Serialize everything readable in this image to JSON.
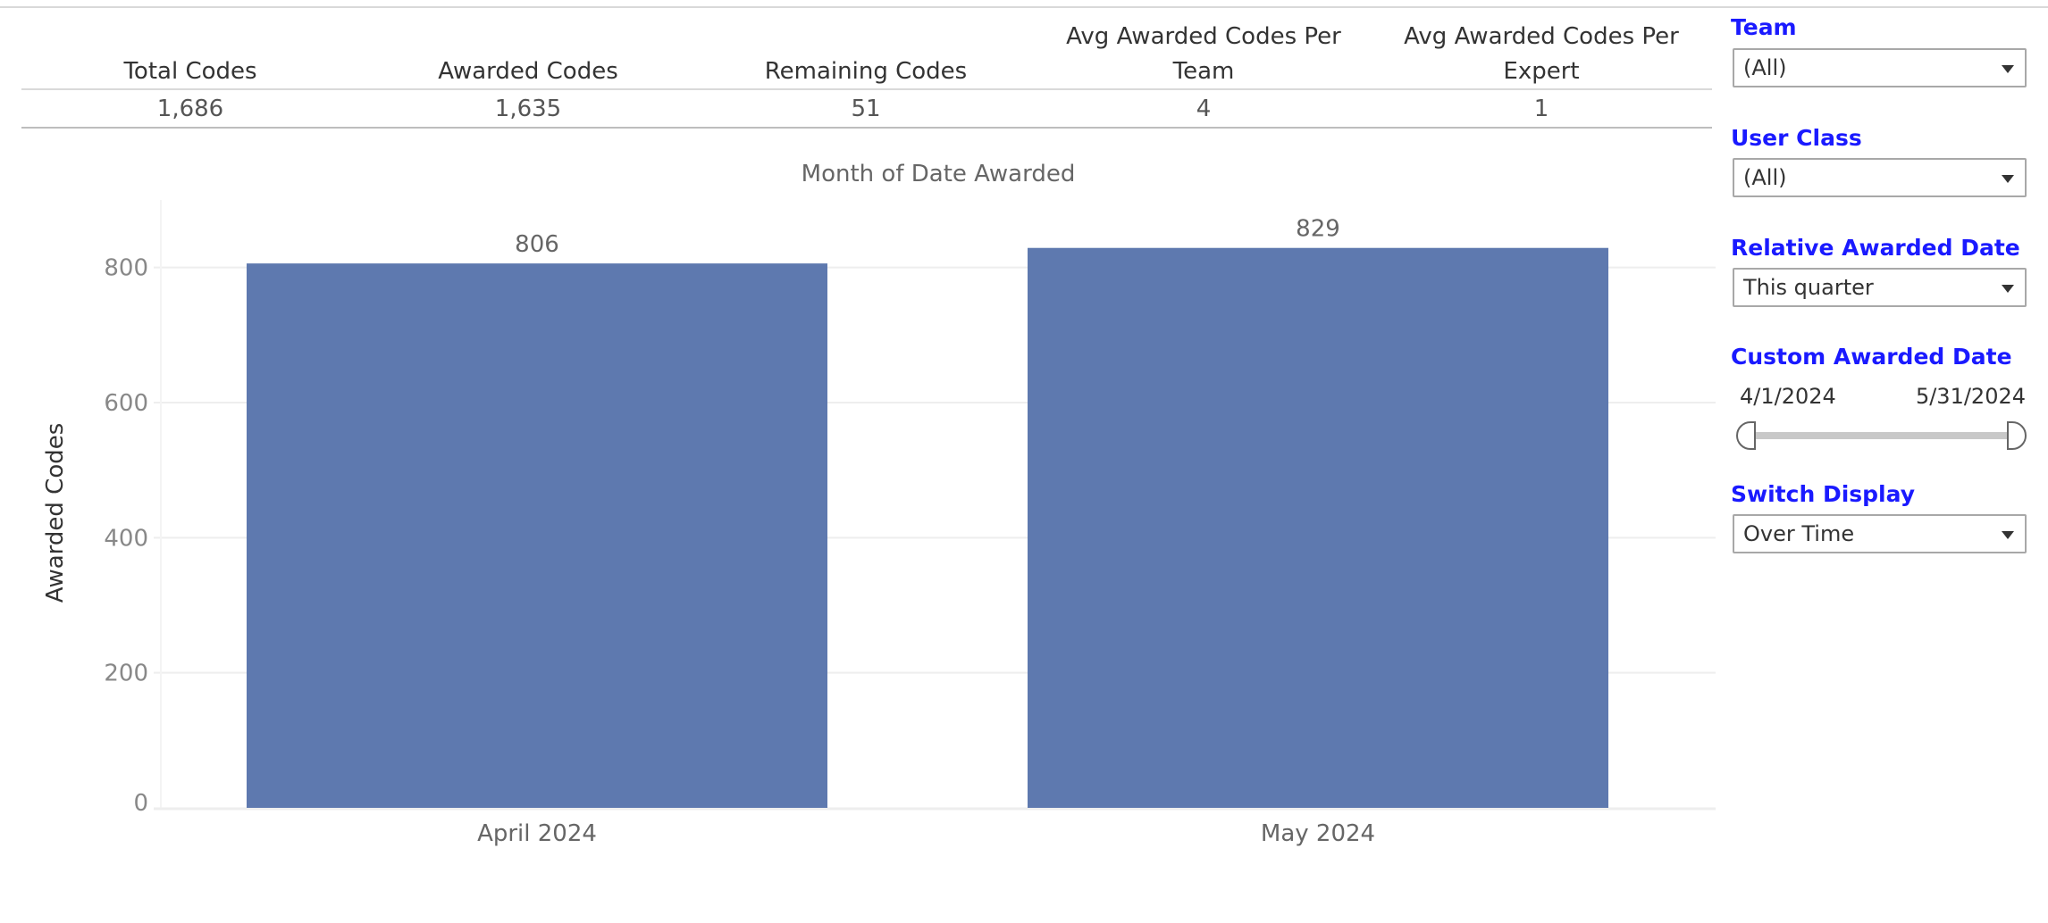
{
  "kpis": [
    {
      "header_line1": "",
      "header_line2": "Total Codes",
      "value": "1,686"
    },
    {
      "header_line1": "",
      "header_line2": "Awarded Codes",
      "value": "1,635"
    },
    {
      "header_line1": "",
      "header_line2": "Remaining Codes",
      "value": "51"
    },
    {
      "header_line1": "Avg Awarded Codes Per",
      "header_line2": "Team",
      "value": "4"
    },
    {
      "header_line1": "Avg Awarded Codes Per",
      "header_line2": "Expert",
      "value": "1"
    }
  ],
  "filters": {
    "team": {
      "title": "Team",
      "value": "(All)"
    },
    "user_class": {
      "title": "User Class",
      "value": "(All)"
    },
    "relative_date": {
      "title": "Relative Awarded Date",
      "value": "This quarter"
    },
    "custom_date": {
      "title": "Custom Awarded Date",
      "start": "4/1/2024",
      "end": "5/31/2024",
      "fill_fraction": 1.0
    },
    "switch_display": {
      "title": "Switch Display",
      "value": "Over Time"
    }
  },
  "colors": {
    "bar": "#5e79af",
    "filter_title": "#1a1aff",
    "grid": "#eeeeee"
  },
  "chart_data": {
    "type": "bar",
    "title": "Month of Date Awarded",
    "ylabel": "Awarded Codes",
    "xlabel": "",
    "categories": [
      "April 2024",
      "May 2024"
    ],
    "values": [
      806,
      829
    ],
    "data_labels": [
      "806",
      "829"
    ],
    "ylim": [
      0,
      900
    ],
    "yticks": [
      0,
      200,
      400,
      600,
      800
    ],
    "grid": true
  }
}
